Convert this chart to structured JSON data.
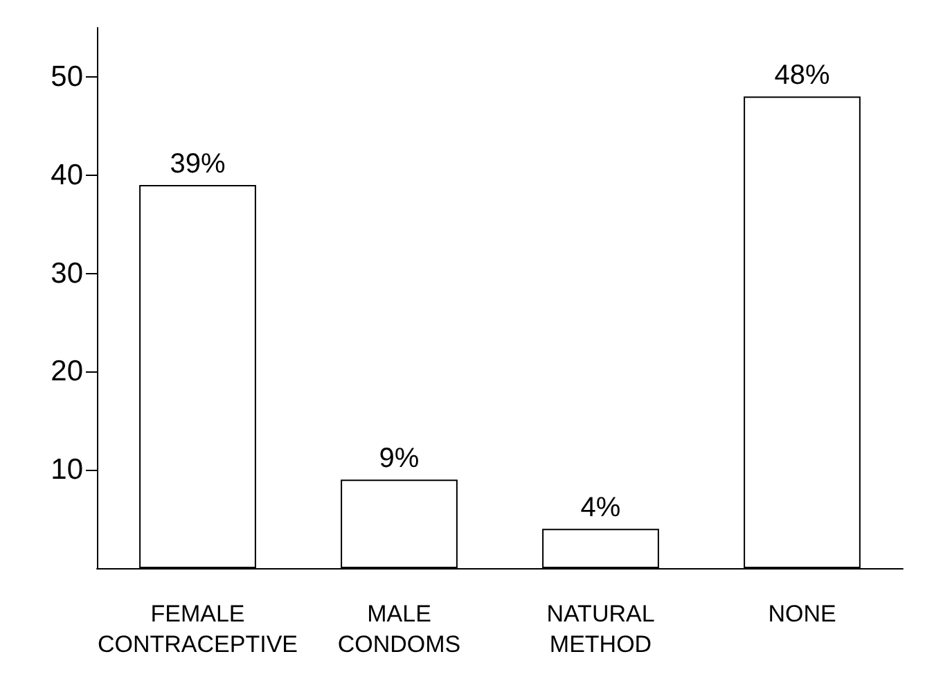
{
  "chart_data": {
    "type": "bar",
    "categories": [
      "FEMALE\nCONTRACEPTIVE",
      "MALE\nCONDOMS",
      "NATURAL\nMETHOD",
      "NONE"
    ],
    "values": [
      39,
      9,
      4,
      48
    ],
    "value_labels": [
      "39%",
      "9%",
      "4%",
      "48%"
    ],
    "color": "#ffffff",
    "ylim": [
      0,
      55
    ],
    "yticks": [
      10,
      20,
      30,
      40,
      50
    ],
    "grid": false
  }
}
